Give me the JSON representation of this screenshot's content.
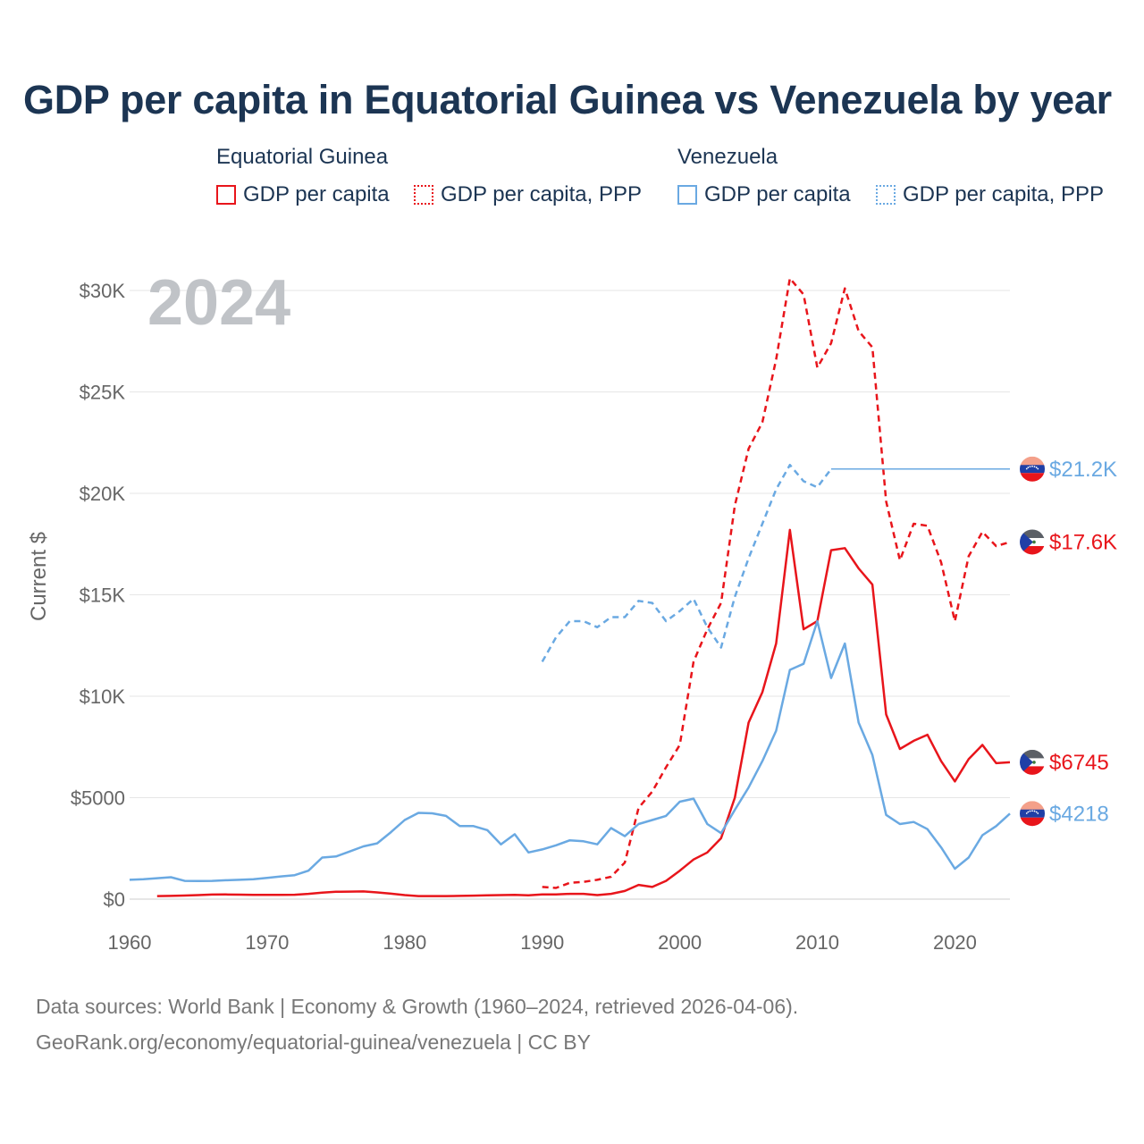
{
  "title": "GDP per capita in Equatorial Guinea vs Venezuela by year",
  "legend": {
    "groups": [
      {
        "name": "Equatorial Guinea",
        "color": "#e8151b",
        "items": [
          "GDP per capita",
          "GDP per capita, PPP"
        ]
      },
      {
        "name": "Venezuela",
        "color": "#6aa9e2",
        "items": [
          "GDP per capita",
          "GDP per capita, PPP"
        ]
      }
    ]
  },
  "sources": {
    "line1": "Data sources: World Bank | Economy & Growth (1960–2024, retrieved 2026-04-06).",
    "line2": "GeoRank.org/economy/equatorial-guinea/venezuela | CC BY"
  },
  "chart_data": {
    "type": "line",
    "title": "GDP per capita in Equatorial Guinea vs Venezuela by year",
    "year_label": "2024",
    "xlabel": "",
    "ylabel": "Current $",
    "xlim": [
      1960,
      2024
    ],
    "ylim": [
      0,
      30000
    ],
    "x_ticks": [
      1960,
      1970,
      1980,
      1990,
      2000,
      2010,
      2020
    ],
    "y_ticks": [
      {
        "value": 0,
        "label": "$0"
      },
      {
        "value": 5000,
        "label": "$5000"
      },
      {
        "value": 10000,
        "label": "$10K"
      },
      {
        "value": 15000,
        "label": "$15K"
      },
      {
        "value": 20000,
        "label": "$20K"
      },
      {
        "value": 25000,
        "label": "$25K"
      },
      {
        "value": 30000,
        "label": "$30K"
      }
    ],
    "grid": true,
    "series": [
      {
        "name": "Equatorial Guinea GDP per capita",
        "color": "#e8151b",
        "style": "solid",
        "end_label": "$6745",
        "flag": "equatorial-guinea",
        "x": [
          1962,
          1963,
          1964,
          1965,
          1966,
          1967,
          1968,
          1969,
          1970,
          1971,
          1972,
          1973,
          1974,
          1975,
          1976,
          1977,
          1978,
          1979,
          1980,
          1981,
          1982,
          1983,
          1984,
          1985,
          1986,
          1987,
          1988,
          1989,
          1990,
          1991,
          1992,
          1993,
          1994,
          1995,
          1996,
          1997,
          1998,
          1999,
          2000,
          2001,
          2002,
          2003,
          2004,
          2005,
          2006,
          2007,
          2008,
          2009,
          2010,
          2011,
          2012,
          2013,
          2014,
          2015,
          2016,
          2017,
          2018,
          2019,
          2020,
          2021,
          2022,
          2023,
          2024
        ],
        "values": [
          150,
          160,
          175,
          200,
          225,
          230,
          220,
          210,
          210,
          210,
          215,
          260,
          320,
          360,
          370,
          380,
          330,
          270,
          200,
          150,
          150,
          150,
          160,
          170,
          190,
          200,
          210,
          190,
          230,
          230,
          260,
          260,
          200,
          260,
          400,
          700,
          600,
          900,
          1400,
          1950,
          2300,
          3000,
          5000,
          8700,
          10200,
          12600,
          18200,
          13300,
          13700,
          17200,
          17300,
          16300,
          15500,
          9100,
          7400,
          7800,
          8100,
          6800,
          5800,
          6900,
          7600,
          6700,
          6745
        ],
        "gaps": [
          1978
        ]
      },
      {
        "name": "Equatorial Guinea GDP per capita, PPP",
        "color": "#e8151b",
        "style": "dashed",
        "end_label": "$17.6K",
        "flag": "equatorial-guinea",
        "x": [
          1990,
          1991,
          1992,
          1993,
          1994,
          1995,
          1996,
          1997,
          1998,
          1999,
          2000,
          2001,
          2002,
          2003,
          2004,
          2005,
          2006,
          2007,
          2008,
          2009,
          2010,
          2011,
          2012,
          2013,
          2014,
          2015,
          2016,
          2017,
          2018,
          2019,
          2020,
          2021,
          2022,
          2023,
          2024
        ],
        "values": [
          600,
          550,
          800,
          850,
          950,
          1100,
          1800,
          4500,
          5300,
          6500,
          7600,
          11700,
          13300,
          14600,
          19400,
          22200,
          23500,
          26600,
          30600,
          29800,
          26200,
          27400,
          30100,
          28000,
          27200,
          19600,
          16700,
          18500,
          18400,
          16600,
          13700,
          16900,
          18100,
          17400,
          17600
        ]
      },
      {
        "name": "Venezuela GDP per capita",
        "color": "#6aa9e2",
        "style": "solid",
        "end_label": "$4218",
        "flag": "venezuela",
        "x": [
          1960,
          1961,
          1962,
          1963,
          1964,
          1965,
          1966,
          1967,
          1968,
          1969,
          1970,
          1971,
          1972,
          1973,
          1974,
          1975,
          1976,
          1977,
          1978,
          1979,
          1980,
          1981,
          1982,
          1983,
          1984,
          1985,
          1986,
          1987,
          1988,
          1989,
          1990,
          1991,
          1992,
          1993,
          1994,
          1995,
          1996,
          1997,
          1998,
          1999,
          2000,
          2001,
          2002,
          2003,
          2004,
          2005,
          2006,
          2007,
          2008,
          2009,
          2010,
          2011,
          2012,
          2013,
          2014,
          2015,
          2016,
          2017,
          2018,
          2019,
          2020,
          2021,
          2022,
          2023,
          2024
        ],
        "values": [
          950,
          980,
          1030,
          1080,
          900,
          890,
          900,
          930,
          950,
          980,
          1050,
          1120,
          1180,
          1400,
          2050,
          2100,
          2350,
          2600,
          2750,
          3300,
          3900,
          4250,
          4230,
          4100,
          3600,
          3600,
          3400,
          2700,
          3200,
          2300,
          2450,
          2650,
          2900,
          2850,
          2700,
          3500,
          3100,
          3700,
          3900,
          4100,
          4800,
          4950,
          3700,
          3250,
          4400,
          5500,
          6800,
          8300,
          11300,
          11600,
          13700,
          10900,
          12600,
          8700,
          7100,
          4150,
          3700,
          3800,
          3450,
          2550,
          1500,
          2050,
          3150,
          3600,
          4218
        ]
      },
      {
        "name": "Venezuela GDP per capita, PPP",
        "color": "#6aa9e2",
        "style": "dashed",
        "end_label": "$21.2K",
        "flag": "venezuela",
        "x": [
          1990,
          1991,
          1992,
          1993,
          1994,
          1995,
          1996,
          1997,
          1998,
          1999,
          2000,
          2001,
          2002,
          2003,
          2004,
          2005,
          2006,
          2007,
          2008,
          2009,
          2010,
          2011
        ],
        "values": [
          11700,
          12900,
          13700,
          13700,
          13400,
          13900,
          13900,
          14700,
          14600,
          13700,
          14200,
          14800,
          13400,
          12400,
          14900,
          16800,
          18500,
          20200,
          21400,
          20600,
          20300,
          21200
        ],
        "extended_to": 2024,
        "extended_value": 21200
      }
    ]
  }
}
